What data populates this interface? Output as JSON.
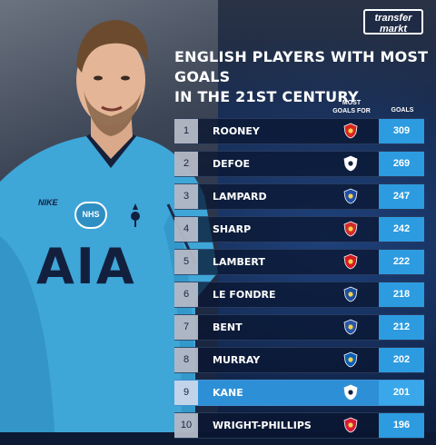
{
  "brand": {
    "line1": "transfer",
    "line2": "markt"
  },
  "title": {
    "line1": "ENGLISH PLAYERS WITH MOST GOALS",
    "line2": "IN THE 21ST CENTURY"
  },
  "headers": {
    "most_goals_for_1": "MOST",
    "most_goals_for_2": "GOALS FOR",
    "goals": "GOALS"
  },
  "shirt": {
    "sponsor": "AIA",
    "nhs": "NHS",
    "nike": "NIKE"
  },
  "colors": {
    "accent": "#2d9be0",
    "highlight": "#2d8fd6",
    "shirt": "#3fa6d8"
  },
  "players": [
    {
      "rank": "1",
      "name": "ROONEY",
      "goals": "309",
      "club_icon": "man-utd-badge-icon",
      "badge_color": "#d7261e"
    },
    {
      "rank": "2",
      "name": "DEFOE",
      "goals": "269",
      "club_icon": "tottenham-badge-icon",
      "badge_color": "#ffffff"
    },
    {
      "rank": "3",
      "name": "LAMPARD",
      "goals": "247",
      "club_icon": "chelsea-badge-icon",
      "badge_color": "#1f4ea8"
    },
    {
      "rank": "4",
      "name": "SHARP",
      "goals": "242",
      "club_icon": "sheffield-united-badge-icon",
      "badge_color": "#d22b2b"
    },
    {
      "rank": "5",
      "name": "LAMBERT",
      "goals": "222",
      "club_icon": "southampton-badge-icon",
      "badge_color": "#d71920"
    },
    {
      "rank": "6",
      "name": "LE FONDRE",
      "goals": "218",
      "club_icon": "reading-badge-icon",
      "badge_color": "#1b4f9c"
    },
    {
      "rank": "7",
      "name": "BENT",
      "goals": "212",
      "club_icon": "ipswich-badge-icon",
      "badge_color": "#2856a8"
    },
    {
      "rank": "8",
      "name": "MURRAY",
      "goals": "202",
      "club_icon": "brighton-badge-icon",
      "badge_color": "#0a5fb4"
    },
    {
      "rank": "9",
      "name": "KANE",
      "goals": "201",
      "club_icon": "tottenham-badge-icon",
      "badge_color": "#ffffff",
      "highlight": true
    },
    {
      "rank": "10",
      "name": "WRIGHT-PHILLIPS",
      "goals": "196",
      "club_icon": "ny-red-bulls-badge-icon",
      "badge_color": "#d71a3a"
    }
  ]
}
